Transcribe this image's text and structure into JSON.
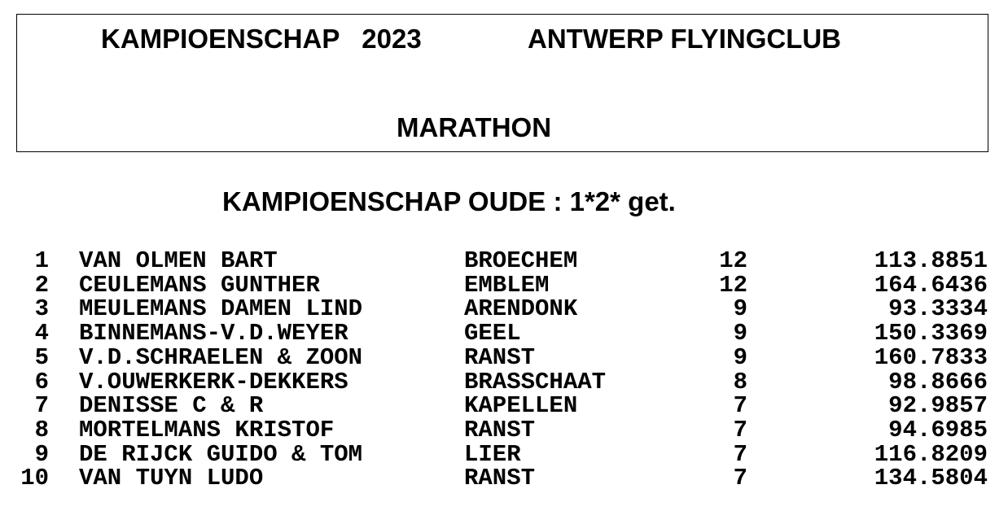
{
  "header": {
    "title_left": "KAMPIOENSCHAP   2023",
    "title_right": "ANTWERP FLYINGCLUB",
    "subtitle": "MARATHON"
  },
  "section_title": "KAMPIOENSCHAP OUDE : 1*2* get.",
  "rows": [
    {
      "rank": "1",
      "name": "VAN OLMEN BART",
      "town": "BROECHEM",
      "count": "12",
      "value": "113.8851"
    },
    {
      "rank": "2",
      "name": "CEULEMANS GUNTHER",
      "town": "EMBLEM",
      "count": "12",
      "value": "164.6436"
    },
    {
      "rank": "3",
      "name": "MEULEMANS DAMEN LIND",
      "town": "ARENDONK",
      "count": "9",
      "value": "93.3334"
    },
    {
      "rank": "4",
      "name": "BINNEMANS-V.D.WEYER",
      "town": "GEEL",
      "count": "9",
      "value": "150.3369"
    },
    {
      "rank": "5",
      "name": "V.D.SCHRAELEN & ZOON",
      "town": "RANST",
      "count": "9",
      "value": "160.7833"
    },
    {
      "rank": "6",
      "name": "V.OUWERKERK-DEKKERS",
      "town": "BRASSCHAAT",
      "count": "8",
      "value": "98.8666"
    },
    {
      "rank": "7",
      "name": "DENISSE C & R",
      "town": "KAPELLEN",
      "count": "7",
      "value": "92.9857"
    },
    {
      "rank": "8",
      "name": "MORTELMANS KRISTOF",
      "town": "RANST",
      "count": "7",
      "value": "94.6985"
    },
    {
      "rank": "9",
      "name": "DE RIJCK GUIDO & TOM",
      "town": "LIER",
      "count": "7",
      "value": "116.8209"
    },
    {
      "rank": "10",
      "name": "VAN TUYN LUDO",
      "town": "RANST",
      "count": "7",
      "value": "134.5804"
    }
  ]
}
